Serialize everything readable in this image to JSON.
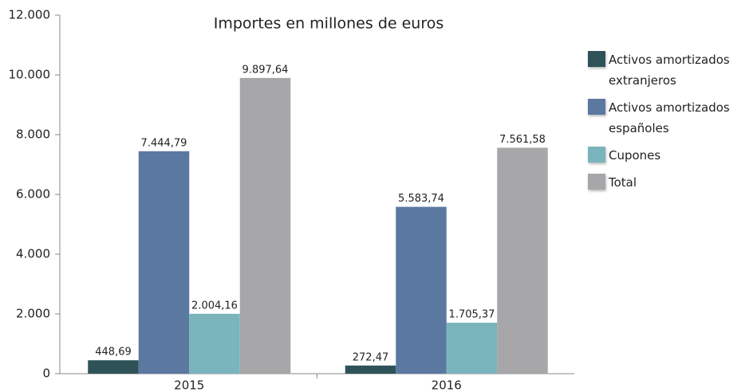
{
  "chart_data": {
    "type": "bar",
    "title": "Importes en millones de euros",
    "categories": [
      "2015",
      "2016"
    ],
    "series": [
      {
        "name": "Activos amortizados extranjeros",
        "color": "#2e5258",
        "values": [
          448.69,
          272.47
        ],
        "value_labels": [
          "448,69",
          "272,47"
        ]
      },
      {
        "name": "Activos amortizados españoles",
        "color": "#5b78a1",
        "values": [
          7444.79,
          5583.74
        ],
        "value_labels": [
          "7.444,79",
          "5.583,74"
        ]
      },
      {
        "name": "Cupones",
        "color": "#7ab4bc",
        "values": [
          2004.16,
          1705.37
        ],
        "value_labels": [
          "2.004,16",
          "1.705,37"
        ]
      },
      {
        "name": "Total",
        "color": "#a7a7a9",
        "values": [
          9897.64,
          7561.58
        ],
        "value_labels": [
          "9.897,64",
          "7.561,58"
        ]
      }
    ],
    "ylim": [
      0,
      12000
    ],
    "yticks": [
      0,
      {
        "value": 2000,
        "label": "2.000"
      },
      {
        "value": 4000,
        "label": "4.000"
      },
      {
        "value": 6000,
        "label": "6.000"
      },
      {
        "value": 8000,
        "label": "8.000"
      },
      {
        "value": 10000,
        "label": "10.000"
      },
      {
        "value": 12000,
        "label": "12.000"
      }
    ],
    "grid": false,
    "legend": "right"
  }
}
